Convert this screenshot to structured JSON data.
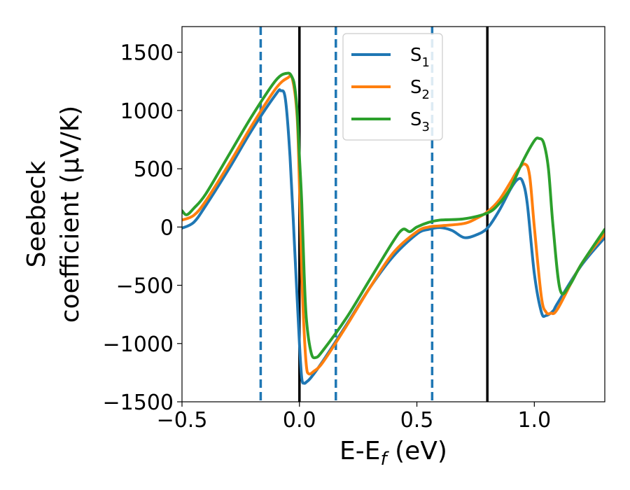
{
  "chart_data": {
    "type": "line",
    "xlabel": "E-E",
    "xlabel_sub": "f",
    "xlabel_unit": " (eV)",
    "ylabel_line1": "Seebeck",
    "ylabel_line2": "coefficient  (μV/K)",
    "xlim": [
      -0.5,
      1.3
    ],
    "ylim": [
      -1500,
      1720
    ],
    "xticks": [
      -0.5,
      0.0,
      0.5,
      1.0
    ],
    "xtick_labels": [
      "−0.5",
      "0.0",
      "0.5",
      "1.0"
    ],
    "yticks": [
      -1500,
      -1000,
      -500,
      0,
      500,
      1000,
      1500
    ],
    "ytick_labels": [
      "−1500",
      "−1000",
      "−500",
      "0",
      "500",
      "1000",
      "1500"
    ],
    "legend_position": "upper-center",
    "vlines_solid": [
      0.0,
      0.8
    ],
    "vlines_dashed": [
      -0.165,
      0.155,
      0.565
    ],
    "vline_solid_color": "#000000",
    "vline_dashed_color": "#1f77b4",
    "series": [
      {
        "name": "S",
        "sub": "1",
        "color": "#1f77b4",
        "x": [
          -0.5,
          -0.45,
          -0.4,
          -0.3,
          -0.2,
          -0.1,
          -0.08,
          -0.06,
          -0.04,
          -0.02,
          0.0,
          0.01,
          0.02,
          0.03,
          0.05,
          0.1,
          0.2,
          0.3,
          0.4,
          0.5,
          0.55,
          0.6,
          0.65,
          0.7,
          0.75,
          0.8,
          0.85,
          0.9,
          0.93,
          0.95,
          0.97,
          1.0,
          1.03,
          1.05,
          1.08,
          1.1,
          1.2,
          1.3
        ],
        "y": [
          -10,
          40,
          180,
          500,
          840,
          1140,
          1170,
          1100,
          600,
          -200,
          -1000,
          -1300,
          -1340,
          -1330,
          -1290,
          -1150,
          -840,
          -520,
          -250,
          -60,
          -20,
          -5,
          -30,
          -90,
          -70,
          -10,
          140,
          330,
          410,
          390,
          200,
          -400,
          -730,
          -760,
          -720,
          -650,
          -330,
          -90
        ]
      },
      {
        "name": "S",
        "sub": "2",
        "color": "#ff7f0e",
        "x": [
          -0.5,
          -0.45,
          -0.4,
          -0.3,
          -0.2,
          -0.1,
          -0.05,
          -0.03,
          -0.01,
          0.0,
          0.01,
          0.02,
          0.03,
          0.04,
          0.06,
          0.1,
          0.2,
          0.3,
          0.4,
          0.5,
          0.55,
          0.6,
          0.7,
          0.75,
          0.8,
          0.85,
          0.9,
          0.93,
          0.96,
          0.98,
          1.0,
          1.03,
          1.05,
          1.07,
          1.1,
          1.2,
          1.3
        ],
        "y": [
          60,
          100,
          220,
          540,
          880,
          1190,
          1280,
          1270,
          950,
          350,
          -400,
          -900,
          -1200,
          -1260,
          -1240,
          -1160,
          -850,
          -520,
          -220,
          -40,
          0,
          10,
          30,
          70,
          130,
          230,
          390,
          490,
          540,
          440,
          0,
          -600,
          -730,
          -740,
          -700,
          -320,
          -60
        ]
      },
      {
        "name": "S",
        "sub": "3",
        "color": "#2ca02c",
        "x": [
          -0.5,
          -0.48,
          -0.45,
          -0.4,
          -0.3,
          -0.2,
          -0.1,
          -0.05,
          -0.03,
          -0.02,
          -0.01,
          0.0,
          0.01,
          0.02,
          0.03,
          0.05,
          0.07,
          0.1,
          0.2,
          0.3,
          0.4,
          0.44,
          0.47,
          0.5,
          0.55,
          0.6,
          0.7,
          0.8,
          0.85,
          0.9,
          0.95,
          1.0,
          1.02,
          1.04,
          1.06,
          1.08,
          1.11,
          1.15,
          1.2,
          1.3
        ],
        "y": [
          140,
          105,
          160,
          280,
          620,
          960,
          1260,
          1320,
          1280,
          1200,
          1000,
          600,
          200,
          -400,
          -800,
          -1080,
          -1120,
          -1060,
          -780,
          -450,
          -120,
          -20,
          -40,
          0,
          40,
          60,
          70,
          120,
          200,
          340,
          560,
          740,
          760,
          720,
          500,
          0,
          -540,
          -500,
          -320,
          -20
        ]
      }
    ]
  }
}
